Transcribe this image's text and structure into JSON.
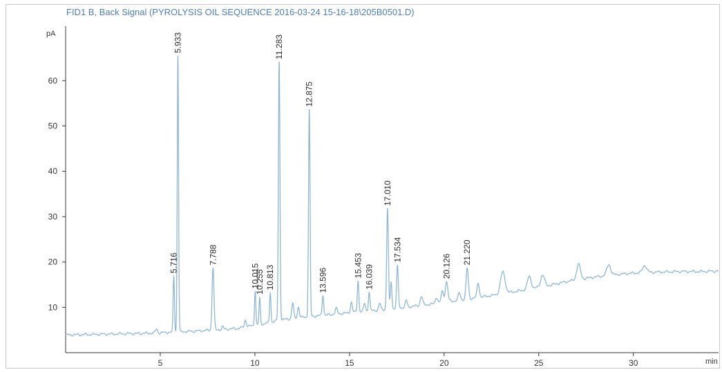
{
  "chart_data": {
    "type": "line",
    "title": "FID1 B, Back Signal (PYROLYSIS OIL SEQUENCE 2016-03-24 15-16-18\\205B0501.D)",
    "ylabel": "pA",
    "xlabel": "min",
    "xlim": [
      0,
      34.5
    ],
    "ylim": [
      0,
      72
    ],
    "x_ticks": [
      5,
      10,
      15,
      20,
      25,
      30
    ],
    "y_ticks": [
      10,
      20,
      30,
      40,
      50,
      60
    ],
    "grid": false,
    "line_color": "#8fb6d4",
    "axis_color": "#333333",
    "baseline": [
      [
        0,
        3.9
      ],
      [
        4.5,
        4.3
      ],
      [
        5.5,
        4.5
      ],
      [
        7,
        4.8
      ],
      [
        9,
        5.3
      ],
      [
        10.5,
        6.4
      ],
      [
        11.5,
        7.3
      ],
      [
        12.5,
        7.8
      ],
      [
        13.5,
        8.2
      ],
      [
        14.5,
        8.6
      ],
      [
        15.5,
        9.0
      ],
      [
        16.5,
        9.4
      ],
      [
        17.5,
        9.8
      ],
      [
        18.5,
        10.3
      ],
      [
        19.5,
        10.8
      ],
      [
        20.5,
        11.4
      ],
      [
        21.5,
        12.0
      ],
      [
        22.5,
        12.6
      ],
      [
        23.5,
        13.3
      ],
      [
        24.5,
        14.0
      ],
      [
        25.5,
        14.8
      ],
      [
        26.5,
        15.7
      ],
      [
        27.5,
        16.4
      ],
      [
        28.5,
        17.0
      ],
      [
        29.5,
        17.4
      ],
      [
        30.5,
        17.7
      ],
      [
        31.5,
        17.8
      ],
      [
        32.5,
        17.9
      ],
      [
        33.5,
        17.9
      ],
      [
        34.5,
        18.0
      ]
    ],
    "peaks": [
      {
        "rt": 4.8,
        "height": 0.9,
        "width": 0.05
      },
      {
        "rt": 5.716,
        "height": 12.3,
        "width": 0.035,
        "label": "5.716"
      },
      {
        "rt": 5.933,
        "height": 61.0,
        "width": 0.035,
        "label": "5.933"
      },
      {
        "rt": 7.788,
        "height": 13.8,
        "width": 0.05,
        "label": "7.788"
      },
      {
        "rt": 8.3,
        "height": 0.6,
        "width": 0.05
      },
      {
        "rt": 9.5,
        "height": 1.6,
        "width": 0.05
      },
      {
        "rt": 10.015,
        "height": 7.7,
        "width": 0.035,
        "label": "10.015"
      },
      {
        "rt": 10.255,
        "height": 5.8,
        "width": 0.035,
        "label": "10.255"
      },
      {
        "rt": 10.813,
        "height": 6.7,
        "width": 0.035,
        "label": "10.813"
      },
      {
        "rt": 11.283,
        "height": 57.0,
        "width": 0.04,
        "label": "11.283"
      },
      {
        "rt": 12.0,
        "height": 3.4,
        "width": 0.05
      },
      {
        "rt": 12.3,
        "height": 2.4,
        "width": 0.05
      },
      {
        "rt": 12.875,
        "height": 45.5,
        "width": 0.04,
        "label": "12.875"
      },
      {
        "rt": 13.596,
        "height": 4.6,
        "width": 0.04,
        "label": "13.596"
      },
      {
        "rt": 14.3,
        "height": 1.2,
        "width": 0.06
      },
      {
        "rt": 15.1,
        "height": 2.3,
        "width": 0.05
      },
      {
        "rt": 15.453,
        "height": 7.0,
        "width": 0.04,
        "label": "15.453"
      },
      {
        "rt": 15.8,
        "height": 1.8,
        "width": 0.05
      },
      {
        "rt": 16.039,
        "height": 4.2,
        "width": 0.04,
        "label": "16.039"
      },
      {
        "rt": 16.6,
        "height": 1.4,
        "width": 0.05
      },
      {
        "rt": 17.01,
        "height": 22.2,
        "width": 0.045,
        "label": "17.010"
      },
      {
        "rt": 17.2,
        "height": 6.0,
        "width": 0.04
      },
      {
        "rt": 17.534,
        "height": 9.2,
        "width": 0.045,
        "label": "17.534"
      },
      {
        "rt": 18.0,
        "height": 1.5,
        "width": 0.05
      },
      {
        "rt": 18.8,
        "height": 2.0,
        "width": 0.06
      },
      {
        "rt": 19.6,
        "height": 1.4,
        "width": 0.06
      },
      {
        "rt": 19.9,
        "height": 2.4,
        "width": 0.06
      },
      {
        "rt": 20.126,
        "height": 4.5,
        "width": 0.07,
        "label": "20.126"
      },
      {
        "rt": 20.8,
        "height": 1.6,
        "width": 0.06
      },
      {
        "rt": 21.22,
        "height": 6.8,
        "width": 0.06,
        "label": "21.220"
      },
      {
        "rt": 21.8,
        "height": 3.2,
        "width": 0.06
      },
      {
        "rt": 23.1,
        "height": 4.8,
        "width": 0.12
      },
      {
        "rt": 24.5,
        "height": 2.8,
        "width": 0.1
      },
      {
        "rt": 25.2,
        "height": 2.6,
        "width": 0.1
      },
      {
        "rt": 27.1,
        "height": 3.4,
        "width": 0.1
      },
      {
        "rt": 28.7,
        "height": 2.4,
        "width": 0.1
      },
      {
        "rt": 30.6,
        "height": 1.6,
        "width": 0.1
      }
    ]
  }
}
